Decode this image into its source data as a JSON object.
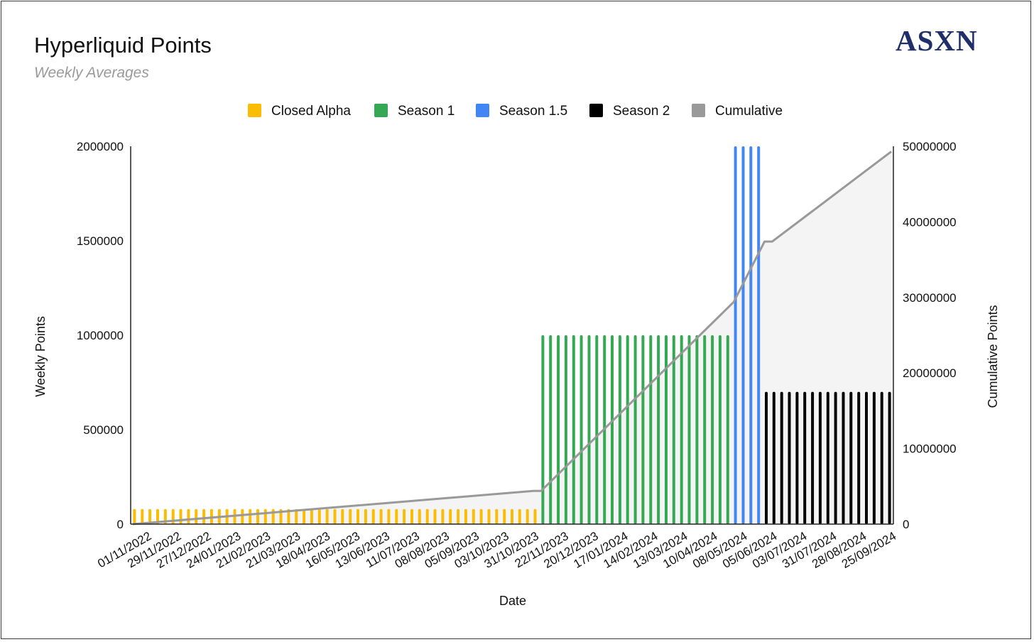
{
  "title": "Hyperliquid Points",
  "subtitle": "Weekly Averages",
  "logo": "ASXN",
  "chart_data": {
    "type": "bar",
    "xlabel": "Date",
    "ylabel": "Weekly Points",
    "y2label": "Cumulative Points",
    "ylim": [
      0,
      2000000
    ],
    "y2lim": [
      0,
      50000000
    ],
    "yticks": [
      "0",
      "500000",
      "1000000",
      "1500000",
      "2000000"
    ],
    "y2ticks": [
      "0",
      "10000000",
      "20000000",
      "30000000",
      "40000000",
      "50000000"
    ],
    "xticks": [
      "01/11/2022",
      "29/11/2022",
      "27/12/2022",
      "24/01/2023",
      "21/02/2023",
      "21/03/2023",
      "18/04/2023",
      "16/05/2023",
      "13/06/2023",
      "11/07/2023",
      "08/08/2023",
      "05/09/2023",
      "03/10/2023",
      "31/10/2023",
      "22/11/2023",
      "20/12/2023",
      "17/01/2024",
      "14/02/2024",
      "13/03/2024",
      "10/04/2024",
      "08/05/2024",
      "05/06/2024",
      "03/07/2024",
      "31/07/2024",
      "28/08/2024",
      "25/09/2024"
    ],
    "legend_position": "top",
    "series": [
      {
        "name": "Closed Alpha",
        "color": "#fbbc04",
        "weeks": 53,
        "value": 80000
      },
      {
        "name": "Season 1",
        "color": "#34a853",
        "weeks": 25,
        "value": 1000000
      },
      {
        "name": "Season 1.5",
        "color": "#4285f4",
        "weeks": 4,
        "value": 2000000
      },
      {
        "name": "Season 2",
        "color": "#000000",
        "weeks": 17,
        "value": 700000
      }
    ],
    "cumulative": {
      "name": "Cumulative",
      "color": "#999999",
      "points": [
        [
          0,
          0
        ],
        [
          52,
          4400000
        ],
        [
          53,
          4400000
        ],
        [
          78,
          29400000
        ],
        [
          82,
          37400000
        ],
        [
          83,
          37400000
        ],
        [
          99,
          49300000
        ]
      ]
    }
  }
}
